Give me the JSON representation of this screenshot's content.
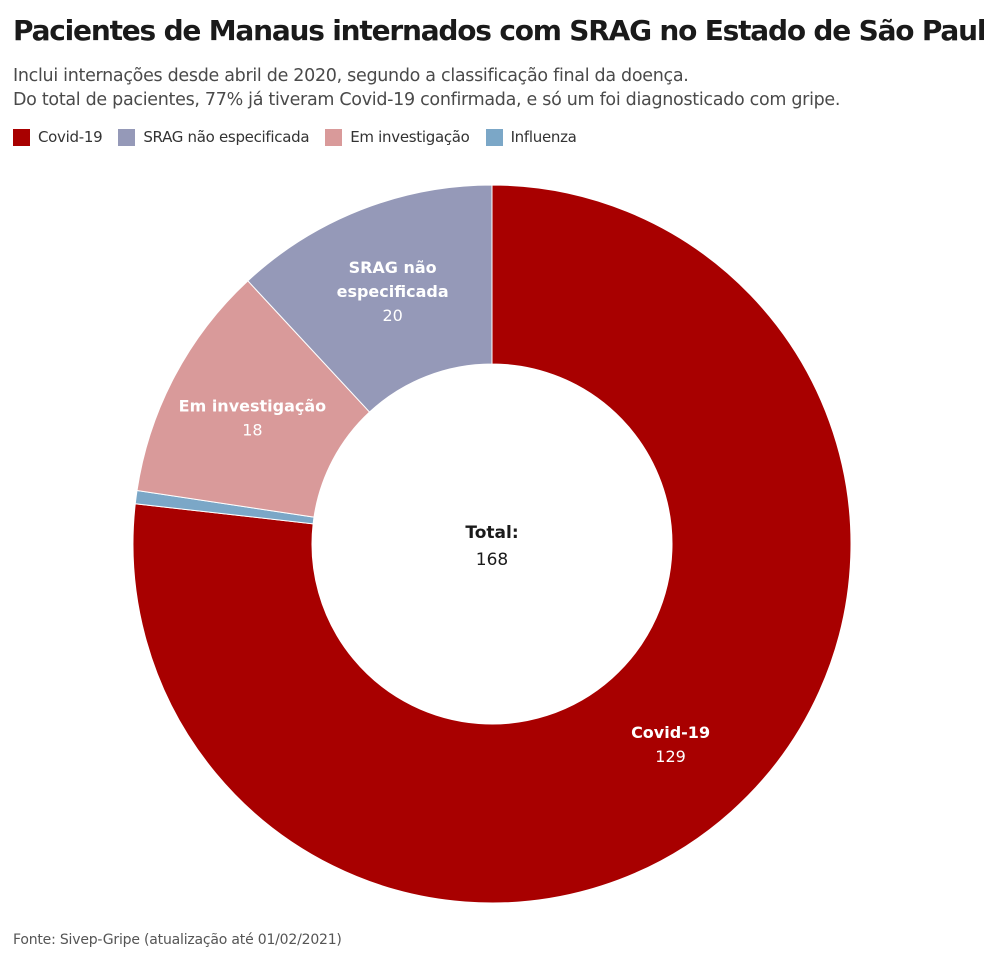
{
  "title": "Pacientes de Manaus internados com SRAG no Estado de São Paulo",
  "subtitle_lines": [
    "Inclui internações desde abril de 2020, segundo a classificação final da doença.",
    "Do total de pacientes, 77% já tiveram Covid-19 confirmada, e só um foi diagnosticado com gripe."
  ],
  "source": "Fonte: Sivep-Gripe (atualização até 01/02/2021)",
  "chart_data": {
    "type": "pie",
    "donut": true,
    "legend_position": "top-left",
    "center_label": {
      "label": "Total:",
      "value": "168"
    },
    "slices": [
      {
        "name": "Covid-19",
        "value": 129,
        "color": "#a80000",
        "label_color": "#ffffff"
      },
      {
        "name": "Influenza",
        "value": 1,
        "color": "#7ba7c7",
        "label_color": "#ffffff"
      },
      {
        "name": "Em investigação",
        "value": 18,
        "color": "#d99a9a",
        "label_color": "#ffffff"
      },
      {
        "name": "SRAG não especificada",
        "value": 20,
        "color": "#9599b8",
        "label_color": "#ffffff"
      }
    ],
    "legend": [
      {
        "name": "Covid-19",
        "color": "#a80000"
      },
      {
        "name": "SRAG não especificada",
        "color": "#9599b8"
      },
      {
        "name": "Em investigação",
        "color": "#d99a9a"
      },
      {
        "name": "Influenza",
        "color": "#7ba7c7"
      }
    ],
    "slice_labels": [
      {
        "name": "Covid-19",
        "lines": [
          "Covid-19"
        ],
        "value": "129"
      },
      {
        "name": "Em investigação",
        "lines": [
          "Em investigação"
        ],
        "value": "18"
      },
      {
        "name": "SRAG não especificada",
        "lines": [
          "SRAG não",
          "especificada"
        ],
        "value": "20"
      }
    ]
  }
}
